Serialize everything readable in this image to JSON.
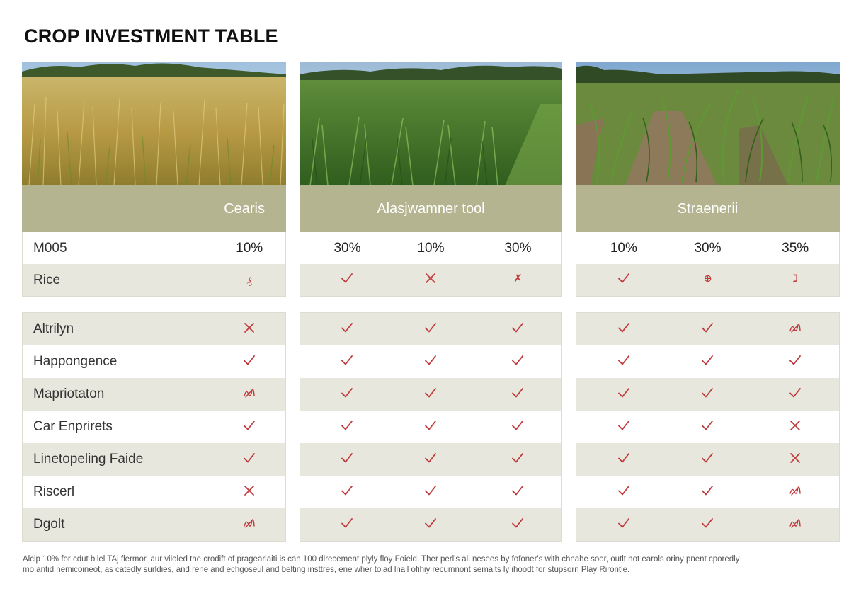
{
  "title": "CROP INVESTMENT TABLE",
  "colors": {
    "header": "#b4b491",
    "shade": "#e7e7dd",
    "mark": "#c0393b"
  },
  "columns": [
    {
      "name": "Cearis",
      "photo": "golden-rice-field"
    },
    {
      "name": "Alasjwamner tool",
      "photo": "green-crop-field"
    },
    {
      "name": "Straenerii",
      "photo": "young-corn-rows"
    }
  ],
  "percent_row": {
    "label": "M005",
    "a": "10%",
    "b": [
      "30%",
      "10%",
      "30%"
    ],
    "c": [
      "10%",
      "30%",
      "35%"
    ]
  },
  "rice_row": {
    "label": "Rice",
    "a": "scribble",
    "b": [
      "check",
      "cross",
      "scribble"
    ],
    "c": [
      "check",
      "scribble",
      "scribble"
    ],
    "a_text": "₰",
    "b_text": "✗",
    "c2_text": "⊕",
    "c3_text": "ℷ"
  },
  "rows": [
    {
      "label": "Altrilyn",
      "a": "cross",
      "b": [
        "check",
        "check",
        "check"
      ],
      "c": [
        "check",
        "check",
        "scribble"
      ]
    },
    {
      "label": "Happongence",
      "a": "check",
      "b": [
        "check",
        "check",
        "check"
      ],
      "c": [
        "check",
        "check",
        "check"
      ]
    },
    {
      "label": "Mapriotaton",
      "a": "scribble",
      "b": [
        "check",
        "check",
        "check"
      ],
      "c": [
        "check",
        "check",
        "check"
      ]
    },
    {
      "label": "Car Enprirets",
      "a": "check",
      "b": [
        "check",
        "check",
        "check"
      ],
      "c": [
        "check",
        "check",
        "cross"
      ]
    },
    {
      "label": "Linetopeling Faide",
      "a": "check",
      "b": [
        "check",
        "check",
        "check"
      ],
      "c": [
        "check",
        "check",
        "cross"
      ]
    },
    {
      "label": "Riscerl",
      "a": "cross",
      "b": [
        "check",
        "check",
        "check"
      ],
      "c": [
        "check",
        "check",
        "scribble"
      ]
    },
    {
      "label": "Dgolt",
      "a": "scribble",
      "b": [
        "check",
        "check",
        "check"
      ],
      "c": [
        "check",
        "check",
        "scribble"
      ]
    }
  ],
  "footnote": {
    "line1": "Alcip 10% for cdut bilel TAj flermor, aur viloled the crodift of pragearlaiti is can 100 dlrecement plyly floy Foield. Ther perl's all nesees by fofoner's with chnahe soor, outlt not earols oriny pnent cporedly",
    "line2": "mo antid nemicoineot, as catedly surldies, and rene and echgoseul and belting insttres, ene wher tolad lnall ofihiy recumnont semalts ly ihoodt for stupsorn Play Rirontle."
  }
}
